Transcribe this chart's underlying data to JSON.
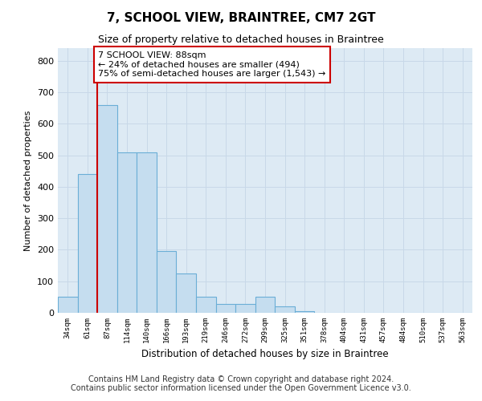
{
  "title": "7, SCHOOL VIEW, BRAINTREE, CM7 2GT",
  "subtitle": "Size of property relative to detached houses in Braintree",
  "xlabel": "Distribution of detached houses by size in Braintree",
  "ylabel": "Number of detached properties",
  "bar_labels": [
    "34sqm",
    "61sqm",
    "87sqm",
    "114sqm",
    "140sqm",
    "166sqm",
    "193sqm",
    "219sqm",
    "246sqm",
    "272sqm",
    "299sqm",
    "325sqm",
    "351sqm",
    "378sqm",
    "404sqm",
    "431sqm",
    "457sqm",
    "484sqm",
    "510sqm",
    "537sqm",
    "563sqm"
  ],
  "bar_values": [
    50,
    440,
    660,
    510,
    510,
    195,
    125,
    50,
    27,
    27,
    50,
    20,
    5,
    0,
    0,
    0,
    0,
    0,
    0,
    0,
    0
  ],
  "bar_color": "#c5ddef",
  "bar_edge_color": "#6aaed6",
  "highlight_bar_index": 2,
  "highlight_line_color": "#cc0000",
  "annotation_text": "7 SCHOOL VIEW: 88sqm\n← 24% of detached houses are smaller (494)\n75% of semi-detached houses are larger (1,543) →",
  "annotation_box_color": "#ffffff",
  "annotation_box_edge_color": "#cc0000",
  "ylim": [
    0,
    840
  ],
  "yticks": [
    0,
    100,
    200,
    300,
    400,
    500,
    600,
    700,
    800
  ],
  "grid_color": "#c8d8e8",
  "background_color": "#ddeaf4",
  "footer_line1": "Contains HM Land Registry data © Crown copyright and database right 2024.",
  "footer_line2": "Contains public sector information licensed under the Open Government Licence v3.0.",
  "title_fontsize": 11,
  "subtitle_fontsize": 9,
  "footer_fontsize": 7
}
